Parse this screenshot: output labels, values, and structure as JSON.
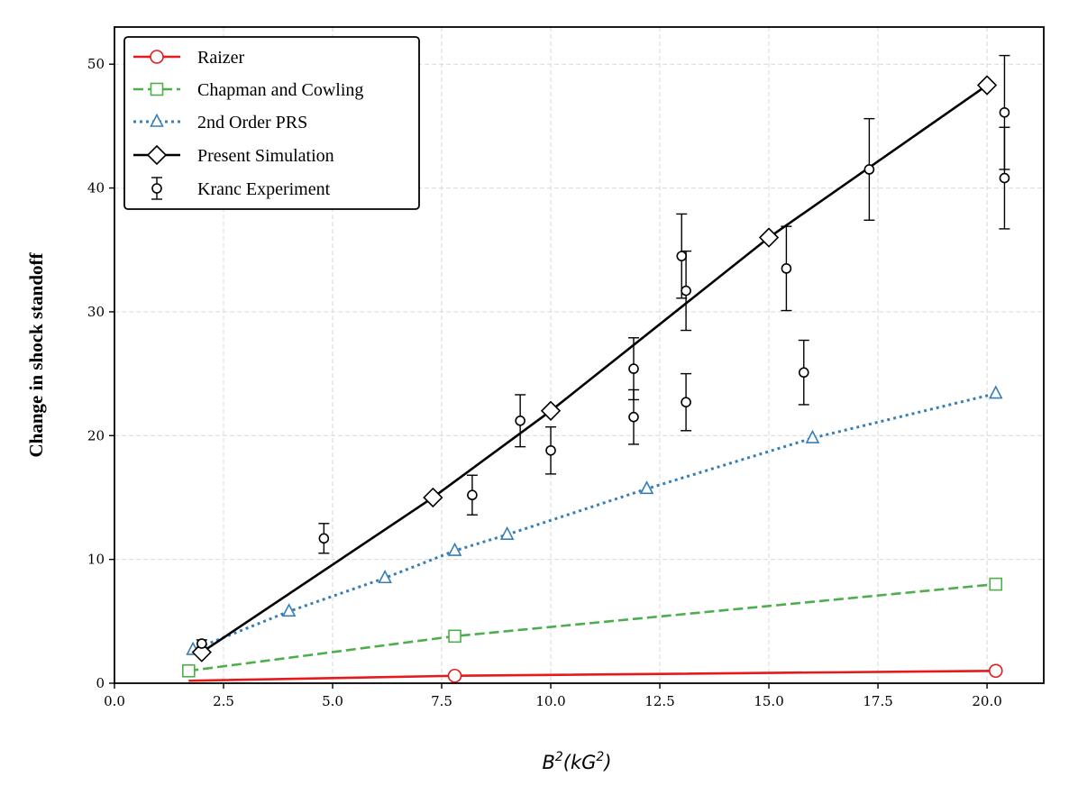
{
  "chart_data": {
    "type": "line",
    "title": "",
    "xlabel": "B²(kG²)",
    "xlabel_parts": {
      "b": "B",
      "b_exp": "2",
      "open": "(kG",
      "g_exp": "2",
      "close": ")"
    },
    "ylabel": "Change in shock standoff",
    "xlim": [
      0,
      21.3
    ],
    "ylim": [
      0,
      53
    ],
    "xticks": [
      0,
      2.5,
      5,
      7.5,
      10,
      12.5,
      15,
      17.5,
      20
    ],
    "xtick_labels": [
      "0.0",
      "2.5",
      "5.0",
      "7.5",
      "10.0",
      "12.5",
      "15.0",
      "17.5",
      "20.0"
    ],
    "yticks": [
      0,
      10,
      20,
      30,
      40,
      50
    ],
    "ytick_labels": [
      "0",
      "10",
      "20",
      "30",
      "40",
      "50"
    ],
    "grid": true,
    "legend_position": "top-left",
    "series": [
      {
        "name": "Raizer",
        "color": "#e41a1c",
        "line_style": "solid",
        "marker": "circle",
        "x": [
          1.7,
          7.8,
          20.2
        ],
        "y": [
          0.2,
          0.6,
          1.0
        ],
        "marker_indices": [
          1,
          2
        ]
      },
      {
        "name": "Chapman and Cowling",
        "color": "#4daf4a",
        "line_style": "dashed",
        "marker": "square",
        "x": [
          1.7,
          7.8,
          20.2
        ],
        "y": [
          1.0,
          3.8,
          8.0
        ],
        "marker_indices": [
          0,
          1,
          2
        ]
      },
      {
        "name": "2nd Order PRS",
        "color": "#377eb8",
        "line_style": "dotted",
        "marker": "triangle",
        "x": [
          1.8,
          4.0,
          6.2,
          7.8,
          9.0,
          12.2,
          16.0,
          20.2
        ],
        "y": [
          2.7,
          5.8,
          8.5,
          10.7,
          12.0,
          15.7,
          19.8,
          23.4
        ],
        "marker_indices": [
          0,
          1,
          2,
          3,
          4,
          5,
          6,
          7
        ]
      },
      {
        "name": "Present Simulation",
        "color": "#000000",
        "line_style": "solid",
        "marker": "diamond",
        "x": [
          2.0,
          7.3,
          10.0,
          15.0,
          20.0
        ],
        "y": [
          2.5,
          15.0,
          22.0,
          36.0,
          48.3
        ],
        "marker_indices": [
          0,
          1,
          2,
          3,
          4
        ]
      }
    ],
    "errorbar_series": {
      "name": "Kranc Experiment",
      "color": "#000000",
      "marker": "circle",
      "points": [
        {
          "x": 2.0,
          "y": 3.2,
          "err": 0.3
        },
        {
          "x": 4.8,
          "y": 11.7,
          "err": 1.2
        },
        {
          "x": 8.2,
          "y": 15.2,
          "err": 1.6
        },
        {
          "x": 9.3,
          "y": 21.2,
          "err": 2.1
        },
        {
          "x": 10.0,
          "y": 18.8,
          "err": 1.9
        },
        {
          "x": 11.9,
          "y": 25.4,
          "err": 2.5
        },
        {
          "x": 11.9,
          "y": 21.5,
          "err": 2.2
        },
        {
          "x": 13.0,
          "y": 34.5,
          "err": 3.4
        },
        {
          "x": 13.1,
          "y": 31.7,
          "err": 3.2
        },
        {
          "x": 13.1,
          "y": 22.7,
          "err": 2.3
        },
        {
          "x": 15.4,
          "y": 33.5,
          "err": 3.4
        },
        {
          "x": 15.8,
          "y": 25.1,
          "err": 2.6
        },
        {
          "x": 17.3,
          "y": 41.5,
          "err": 4.1
        },
        {
          "x": 20.4,
          "y": 46.1,
          "err": 4.6
        },
        {
          "x": 20.4,
          "y": 40.8,
          "err": 4.1
        }
      ]
    }
  }
}
